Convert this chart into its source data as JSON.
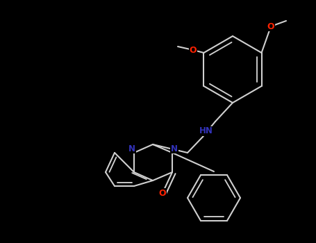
{
  "background_color": "#000000",
  "bond_color": "#d0d0d0",
  "O_color": "#ff2200",
  "N_color": "#3333bb",
  "lw": 1.5,
  "fs": 8.5,
  "figsize": [
    4.55,
    3.5
  ],
  "dpi": 100,
  "xlim": [
    0,
    455
  ],
  "ylim": [
    0,
    350
  ]
}
